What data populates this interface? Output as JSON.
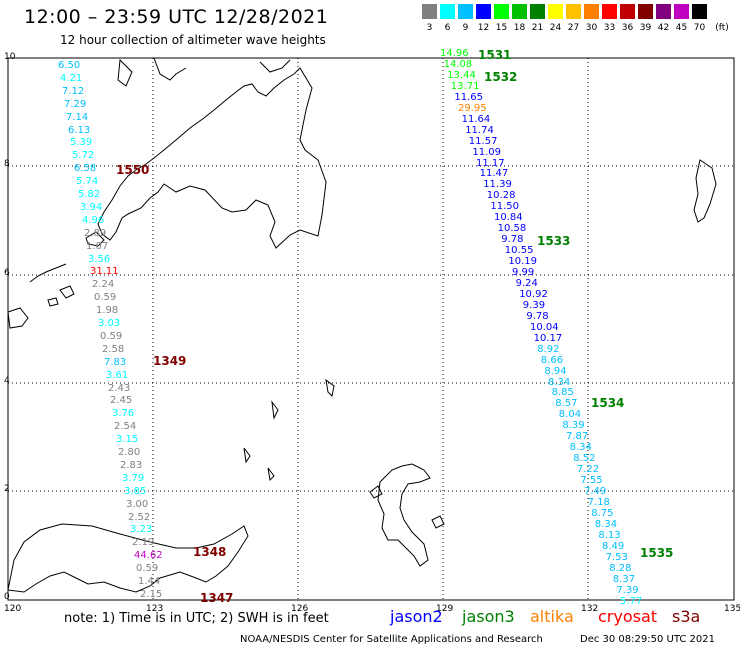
{
  "header": {
    "title": "12:00 – 23:59 UTC 12/28/2021",
    "subtitle": "12 hour collection of altimeter wave heights"
  },
  "legend": {
    "unit": "(ft)",
    "bins": [
      {
        "label": "3",
        "color": "#808080"
      },
      {
        "label": "6",
        "color": "#00ffff"
      },
      {
        "label": "9",
        "color": "#00bfff"
      },
      {
        "label": "12",
        "color": "#0000ff"
      },
      {
        "label": "15",
        "color": "#00ff00"
      },
      {
        "label": "18",
        "color": "#00c000"
      },
      {
        "label": "21",
        "color": "#008000"
      },
      {
        "label": "24",
        "color": "#ffff00"
      },
      {
        "label": "27",
        "color": "#ffc000"
      },
      {
        "label": "30",
        "color": "#ff8000"
      },
      {
        "label": "33",
        "color": "#ff0000"
      },
      {
        "label": "36",
        "color": "#c00000"
      },
      {
        "label": "39",
        "color": "#800000"
      },
      {
        "label": "42",
        "color": "#800080"
      },
      {
        "label": "45",
        "color": "#c000c0"
      },
      {
        "label": "70",
        "color": "#000000"
      }
    ]
  },
  "axes": {
    "x_ticks": [
      "120",
      "123",
      "126",
      "129",
      "132",
      "135"
    ],
    "y_ticks": [
      "0",
      "2",
      "4",
      "6",
      "8",
      "10"
    ]
  },
  "passes": [
    {
      "id": "1531",
      "color": "#008000"
    },
    {
      "id": "1532",
      "color": "#008000"
    },
    {
      "id": "1533",
      "color": "#008000"
    },
    {
      "id": "1534",
      "color": "#008000"
    },
    {
      "id": "1535",
      "color": "#008000"
    },
    {
      "id": "1550",
      "color": "#800000"
    },
    {
      "id": "1349",
      "color": "#800000"
    },
    {
      "id": "1348",
      "color": "#800000"
    },
    {
      "id": "1347",
      "color": "#800000"
    }
  ],
  "track_west": [
    {
      "v": "6.50",
      "c": "#00bfff"
    },
    {
      "v": "4.21",
      "c": "#00ffff"
    },
    {
      "v": "7.12",
      "c": "#00bfff"
    },
    {
      "v": "7.29",
      "c": "#00bfff"
    },
    {
      "v": "7.14",
      "c": "#00bfff"
    },
    {
      "v": "6.13",
      "c": "#00bfff"
    },
    {
      "v": "5.39",
      "c": "#00ffff"
    },
    {
      "v": "5.72",
      "c": "#00ffff"
    },
    {
      "v": "6.58",
      "c": "#00bfff"
    },
    {
      "v": "5.74",
      "c": "#00ffff"
    },
    {
      "v": "5.82",
      "c": "#00ffff"
    },
    {
      "v": "3.94",
      "c": "#00ffff"
    },
    {
      "v": "4.96",
      "c": "#00ffff"
    },
    {
      "v": "2.89",
      "c": "#808080"
    },
    {
      "v": "1.07",
      "c": "#808080"
    },
    {
      "v": "3.56",
      "c": "#00ffff"
    },
    {
      "v": "31.11",
      "c": "#ff0000"
    },
    {
      "v": "2.24",
      "c": "#808080"
    },
    {
      "v": "0.59",
      "c": "#808080"
    },
    {
      "v": "1.98",
      "c": "#808080"
    },
    {
      "v": "3.03",
      "c": "#00ffff"
    },
    {
      "v": "0.59",
      "c": "#808080"
    },
    {
      "v": "2.58",
      "c": "#808080"
    },
    {
      "v": "7.83",
      "c": "#00bfff"
    },
    {
      "v": "3.61",
      "c": "#00ffff"
    },
    {
      "v": "2.43",
      "c": "#808080"
    },
    {
      "v": "2.45",
      "c": "#808080"
    },
    {
      "v": "3.76",
      "c": "#00ffff"
    },
    {
      "v": "2.54",
      "c": "#808080"
    },
    {
      "v": "3.15",
      "c": "#00ffff"
    },
    {
      "v": "2.80",
      "c": "#808080"
    },
    {
      "v": "2.83",
      "c": "#808080"
    },
    {
      "v": "3.79",
      "c": "#00ffff"
    },
    {
      "v": "3.85",
      "c": "#00ffff"
    },
    {
      "v": "3.00",
      "c": "#808080"
    },
    {
      "v": "2.52",
      "c": "#808080"
    },
    {
      "v": "3.23",
      "c": "#00ffff"
    },
    {
      "v": "2.19",
      "c": "#808080"
    },
    {
      "v": "44.62",
      "c": "#c000c0"
    },
    {
      "v": "0.59",
      "c": "#808080"
    },
    {
      "v": "1.44",
      "c": "#808080"
    },
    {
      "v": "2.15",
      "c": "#808080"
    }
  ],
  "track_east": [
    {
      "v": "14.96",
      "c": "#00ff00"
    },
    {
      "v": "14.08",
      "c": "#00ff00"
    },
    {
      "v": "13.44",
      "c": "#00ff00"
    },
    {
      "v": "13.71",
      "c": "#00ff00"
    },
    {
      "v": "11.65",
      "c": "#0000ff"
    },
    {
      "v": "29.95",
      "c": "#ff8000"
    },
    {
      "v": "11.64",
      "c": "#0000ff"
    },
    {
      "v": "11.74",
      "c": "#0000ff"
    },
    {
      "v": "11.57",
      "c": "#0000ff"
    },
    {
      "v": "11.09",
      "c": "#0000ff"
    },
    {
      "v": "11.17",
      "c": "#0000ff"
    },
    {
      "v": "11.47",
      "c": "#0000ff"
    },
    {
      "v": "11.39",
      "c": "#0000ff"
    },
    {
      "v": "10.28",
      "c": "#0000ff"
    },
    {
      "v": "11.50",
      "c": "#0000ff"
    },
    {
      "v": "10.84",
      "c": "#0000ff"
    },
    {
      "v": "10.58",
      "c": "#0000ff"
    },
    {
      "v": "9.78",
      "c": "#0000ff"
    },
    {
      "v": "10.55",
      "c": "#0000ff"
    },
    {
      "v": "10.19",
      "c": "#0000ff"
    },
    {
      "v": "9.99",
      "c": "#0000ff"
    },
    {
      "v": "9.24",
      "c": "#0000ff"
    },
    {
      "v": "10.92",
      "c": "#0000ff"
    },
    {
      "v": "9.39",
      "c": "#0000ff"
    },
    {
      "v": "9.78",
      "c": "#0000ff"
    },
    {
      "v": "10.04",
      "c": "#0000ff"
    },
    {
      "v": "10.17",
      "c": "#0000ff"
    },
    {
      "v": "8.92",
      "c": "#00bfff"
    },
    {
      "v": "8.66",
      "c": "#00bfff"
    },
    {
      "v": "8.94",
      "c": "#00bfff"
    },
    {
      "v": "8.34",
      "c": "#00bfff"
    },
    {
      "v": "8.85",
      "c": "#00bfff"
    },
    {
      "v": "8.57",
      "c": "#00bfff"
    },
    {
      "v": "8.04",
      "c": "#00bfff"
    },
    {
      "v": "8.39",
      "c": "#00bfff"
    },
    {
      "v": "7.87",
      "c": "#00bfff"
    },
    {
      "v": "8.34",
      "c": "#00bfff"
    },
    {
      "v": "8.52",
      "c": "#00bfff"
    },
    {
      "v": "7.22",
      "c": "#00bfff"
    },
    {
      "v": "7.55",
      "c": "#00bfff"
    },
    {
      "v": "7.49",
      "c": "#00bfff"
    },
    {
      "v": "7.18",
      "c": "#00bfff"
    },
    {
      "v": "8.75",
      "c": "#00bfff"
    },
    {
      "v": "8.34",
      "c": "#00bfff"
    },
    {
      "v": "8.13",
      "c": "#00bfff"
    },
    {
      "v": "8.49",
      "c": "#00bfff"
    },
    {
      "v": "7.53",
      "c": "#00bfff"
    },
    {
      "v": "8.28",
      "c": "#00bfff"
    },
    {
      "v": "8.37",
      "c": "#00bfff"
    },
    {
      "v": "7.39",
      "c": "#00bfff"
    },
    {
      "v": "5.77",
      "c": "#00ffff"
    }
  ],
  "footer": {
    "note": "note:  1) Time is in UTC;  2) SWH is in feet",
    "missions": [
      {
        "name": "jason2",
        "color": "#0000ff"
      },
      {
        "name": "jason3",
        "color": "#008000"
      },
      {
        "name": "altika",
        "color": "#ff8000"
      },
      {
        "name": "cryosat",
        "color": "#ff0000"
      },
      {
        "name": "s3a",
        "color": "#800000"
      }
    ],
    "credit": "NOAA/NESDIS Center for Satellite Applications and Research",
    "timestamp": "Dec 30 08:29:50 UTC 2021"
  }
}
